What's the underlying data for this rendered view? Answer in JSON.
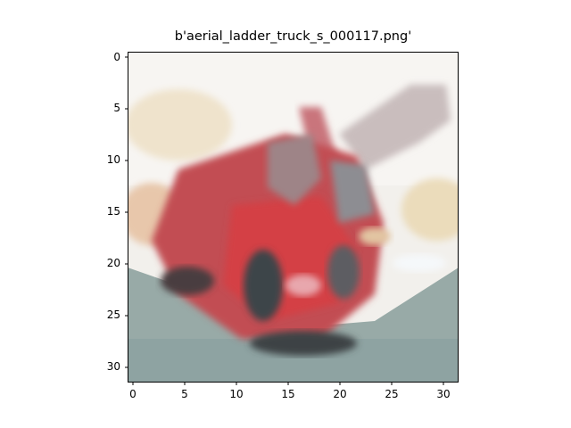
{
  "figure": {
    "title": "b'aerial_ladder_truck_s_000117.png'",
    "x_ticks": [
      "0",
      "5",
      "10",
      "15",
      "20",
      "25",
      "30"
    ],
    "y_ticks": [
      "0",
      "5",
      "10",
      "15",
      "20",
      "25",
      "30"
    ]
  },
  "colors": {
    "background": "#ffffff",
    "sky": "#f3f1ec",
    "ground": "#93a7a5",
    "truck_red": "#c94548",
    "truck_dark": "#3b3a3c",
    "axis": "#000000"
  }
}
